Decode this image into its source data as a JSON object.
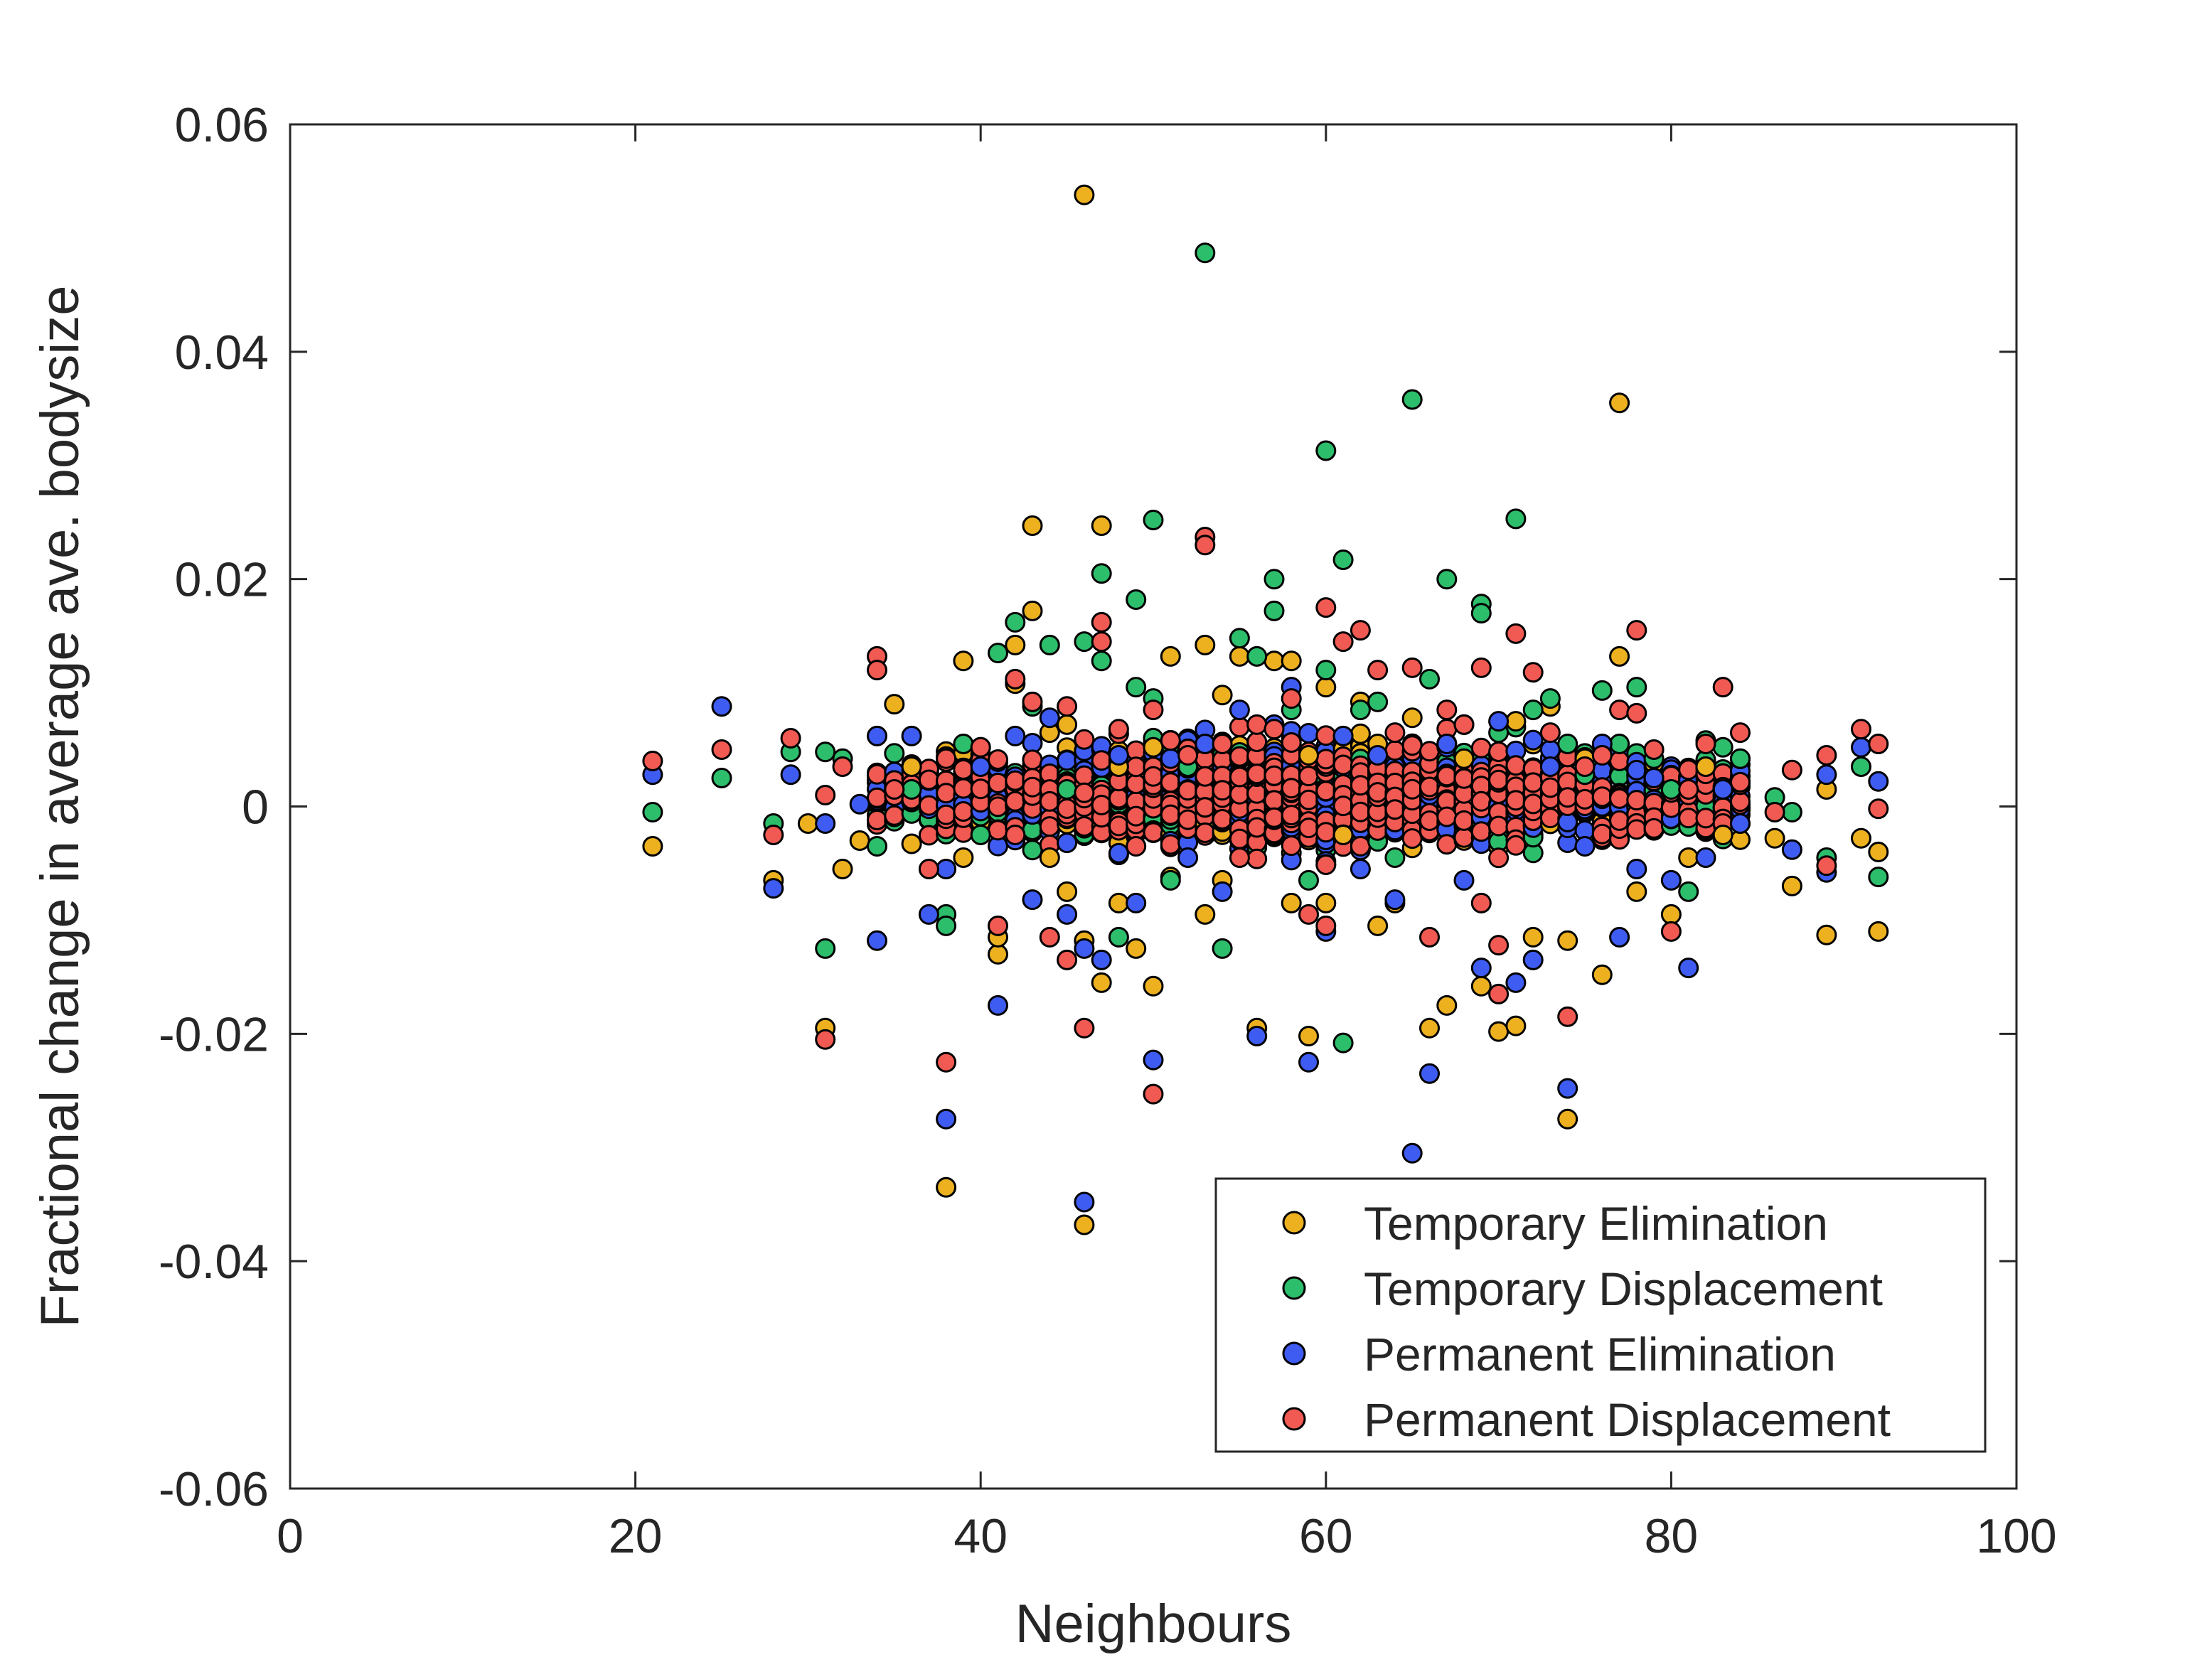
{
  "chart_data": {
    "type": "scatter",
    "title": "",
    "xlabel": "Neighbours",
    "ylabel": "Fractional change in average ave. bodysize",
    "xlim": [
      0,
      100
    ],
    "ylim": [
      -0.06,
      0.06
    ],
    "x_ticks": [
      0,
      20,
      40,
      60,
      80,
      100
    ],
    "x_tick_labels": [
      "0",
      "20",
      "40",
      "60",
      "80",
      "100"
    ],
    "y_ticks": [
      -0.06,
      -0.04,
      -0.02,
      0,
      0.02,
      0.04,
      0.06
    ],
    "y_tick_labels": [
      "-0.06",
      "-0.04",
      "-0.02",
      "0",
      "0.02",
      "0.04",
      "0.06"
    ],
    "grid": false,
    "legend_position": "bottom-right",
    "series": [
      {
        "name": "Temporary Elimination",
        "color": "#EDB120",
        "points": [
          [
            21,
            -0.0035
          ],
          [
            28,
            -0.0065
          ],
          [
            30,
            -0.0015
          ],
          [
            31,
            -0.0195
          ],
          [
            32,
            -0.0055
          ],
          [
            33,
            -0.003
          ],
          [
            35,
            0.009
          ],
          [
            36,
            0.0035
          ],
          [
            38,
            -0.0335
          ],
          [
            39,
            0.0128
          ],
          [
            39,
            -0.0045
          ],
          [
            40,
            0.0052
          ],
          [
            41,
            -0.013
          ],
          [
            41,
            -0.0115
          ],
          [
            42,
            0.0108
          ],
          [
            42,
            0.0142
          ],
          [
            43,
            0.0247
          ],
          [
            43,
            0.0172
          ],
          [
            44,
            0.0065
          ],
          [
            44,
            -0.0045
          ],
          [
            45,
            0.0072
          ],
          [
            45,
            -0.0075
          ],
          [
            46,
            0.0538
          ],
          [
            46,
            -0.0368
          ],
          [
            46,
            -0.0118
          ],
          [
            47,
            0.0247
          ],
          [
            47,
            -0.0155
          ],
          [
            48,
            0.0035
          ],
          [
            48,
            -0.0085
          ],
          [
            49,
            -0.0125
          ],
          [
            50,
            0.0052
          ],
          [
            50,
            -0.0158
          ],
          [
            51,
            0.0132
          ],
          [
            51,
            -0.0062
          ],
          [
            52,
            0.0035
          ],
          [
            53,
            0.0142
          ],
          [
            53,
            -0.0095
          ],
          [
            54,
            0.0098
          ],
          [
            54,
            -0.0065
          ],
          [
            55,
            0.0132
          ],
          [
            56,
            -0.0195
          ],
          [
            57,
            0.0128
          ],
          [
            58,
            0.0128
          ],
          [
            58,
            -0.0085
          ],
          [
            59,
            -0.0202
          ],
          [
            59,
            0.0045
          ],
          [
            60,
            0.0105
          ],
          [
            60,
            -0.0085
          ],
          [
            61,
            -0.0025
          ],
          [
            62,
            0.0092
          ],
          [
            63,
            0.0055
          ],
          [
            63,
            -0.0105
          ],
          [
            64,
            -0.0085
          ],
          [
            65,
            0.0078
          ],
          [
            66,
            -0.0195
          ],
          [
            67,
            -0.0175
          ],
          [
            68,
            0.0042
          ],
          [
            69,
            -0.0158
          ],
          [
            70,
            -0.0198
          ],
          [
            71,
            -0.0193
          ],
          [
            71,
            0.0075
          ],
          [
            72,
            -0.0115
          ],
          [
            73,
            0.0088
          ],
          [
            74,
            -0.0275
          ],
          [
            74,
            -0.0118
          ],
          [
            75,
            0.0042
          ],
          [
            76,
            -0.0148
          ],
          [
            77,
            0.0355
          ],
          [
            77,
            0.0132
          ],
          [
            78,
            -0.0075
          ],
          [
            79,
            0.0038
          ],
          [
            80,
            -0.0095
          ],
          [
            81,
            -0.0045
          ],
          [
            82,
            0.0035
          ],
          [
            83,
            -0.0025
          ],
          [
            84,
            -0.0015
          ],
          [
            86,
            -0.0028
          ],
          [
            87,
            -0.007
          ],
          [
            89,
            -0.0113
          ],
          [
            89,
            0.0015
          ],
          [
            91,
            -0.0028
          ],
          [
            92,
            -0.011
          ],
          [
            92,
            -0.004
          ]
        ]
      },
      {
        "name": "Temporary Displacement",
        "color": "#2DBE6C",
        "points": [
          [
            21,
            -0.0005
          ],
          [
            25,
            0.0025
          ],
          [
            28,
            -0.0015
          ],
          [
            29,
            0.0048
          ],
          [
            31,
            -0.0125
          ],
          [
            31,
            0.0048
          ],
          [
            32,
            0.0042
          ],
          [
            34,
            -0.0035
          ],
          [
            36,
            0.0015
          ],
          [
            38,
            -0.0095
          ],
          [
            38,
            -0.0105
          ],
          [
            39,
            0.0055
          ],
          [
            40,
            -0.0025
          ],
          [
            41,
            0.0135
          ],
          [
            42,
            0.0162
          ],
          [
            43,
            0.0088
          ],
          [
            44,
            0.0142
          ],
          [
            45,
            0.0015
          ],
          [
            46,
            0.0145
          ],
          [
            47,
            0.0205
          ],
          [
            47,
            0.0128
          ],
          [
            48,
            -0.0115
          ],
          [
            49,
            0.0182
          ],
          [
            49,
            0.0105
          ],
          [
            50,
            0.0252
          ],
          [
            50,
            0.0095
          ],
          [
            51,
            -0.0065
          ],
          [
            52,
            0.0035
          ],
          [
            53,
            0.0487
          ],
          [
            54,
            -0.0125
          ],
          [
            55,
            0.0148
          ],
          [
            56,
            0.0132
          ],
          [
            57,
            0.02
          ],
          [
            57,
            0.0172
          ],
          [
            58,
            0.0085
          ],
          [
            59,
            -0.0065
          ],
          [
            60,
            0.0313
          ],
          [
            60,
            0.012
          ],
          [
            61,
            0.0217
          ],
          [
            61,
            -0.0208
          ],
          [
            62,
            0.0085
          ],
          [
            63,
            0.0092
          ],
          [
            64,
            -0.0045
          ],
          [
            65,
            0.0358
          ],
          [
            66,
            0.0112
          ],
          [
            67,
            0.02
          ],
          [
            68,
            0.0072
          ],
          [
            69,
            0.0178
          ],
          [
            69,
            0.017
          ],
          [
            70,
            0.0065
          ],
          [
            71,
            0.0253
          ],
          [
            72,
            0.0085
          ],
          [
            73,
            0.0095
          ],
          [
            74,
            0.0055
          ],
          [
            75,
            0.0028
          ],
          [
            76,
            0.0102
          ],
          [
            77,
            0.0055
          ],
          [
            78,
            0.0105
          ],
          [
            79,
            0.0042
          ],
          [
            80,
            0.0015
          ],
          [
            81,
            -0.0075
          ],
          [
            82,
            0.0058
          ],
          [
            83,
            0.0052
          ],
          [
            84,
            0.0042
          ],
          [
            86,
            0.0008
          ],
          [
            87,
            -0.0005
          ],
          [
            89,
            -0.0045
          ],
          [
            91,
            0.0035
          ],
          [
            92,
            -0.0062
          ]
        ]
      },
      {
        "name": "Permanent Elimination",
        "color": "#3F5CF2",
        "points": [
          [
            21,
            0.0028
          ],
          [
            25,
            0.0088
          ],
          [
            28,
            -0.0072
          ],
          [
            29,
            0.0028
          ],
          [
            31,
            -0.0015
          ],
          [
            33,
            0.0002
          ],
          [
            34,
            -0.0118
          ],
          [
            34,
            0.0062
          ],
          [
            36,
            0.0062
          ],
          [
            37,
            -0.0095
          ],
          [
            38,
            -0.0275
          ],
          [
            38,
            -0.0055
          ],
          [
            40,
            0.0035
          ],
          [
            41,
            -0.0175
          ],
          [
            42,
            0.0062
          ],
          [
            43,
            -0.0082
          ],
          [
            44,
            0.0078
          ],
          [
            45,
            -0.0095
          ],
          [
            46,
            -0.0348
          ],
          [
            46,
            -0.0125
          ],
          [
            47,
            -0.0135
          ],
          [
            48,
            0.0045
          ],
          [
            49,
            -0.0085
          ],
          [
            50,
            -0.0223
          ],
          [
            51,
            0.0042
          ],
          [
            52,
            -0.0045
          ],
          [
            53,
            0.0055
          ],
          [
            54,
            -0.0075
          ],
          [
            55,
            0.0085
          ],
          [
            56,
            -0.0202
          ],
          [
            57,
            0.0072
          ],
          [
            58,
            0.0105
          ],
          [
            59,
            -0.0225
          ],
          [
            60,
            -0.011
          ],
          [
            61,
            0.0062
          ],
          [
            62,
            -0.0055
          ],
          [
            63,
            0.0045
          ],
          [
            64,
            -0.0082
          ],
          [
            65,
            -0.0305
          ],
          [
            66,
            -0.0235
          ],
          [
            67,
            0.0055
          ],
          [
            68,
            -0.0065
          ],
          [
            69,
            -0.0142
          ],
          [
            70,
            0.0075
          ],
          [
            71,
            -0.0155
          ],
          [
            72,
            -0.0135
          ],
          [
            73,
            0.0035
          ],
          [
            74,
            -0.0248
          ],
          [
            75,
            -0.0035
          ],
          [
            76,
            0.0055
          ],
          [
            77,
            -0.0115
          ],
          [
            78,
            -0.0055
          ],
          [
            79,
            0.0025
          ],
          [
            80,
            -0.0065
          ],
          [
            81,
            -0.0142
          ],
          [
            82,
            -0.0045
          ],
          [
            83,
            0.0015
          ],
          [
            84,
            -0.0015
          ],
          [
            87,
            -0.0038
          ],
          [
            89,
            -0.0058
          ],
          [
            89,
            0.0028
          ],
          [
            91,
            0.0052
          ],
          [
            92,
            0.0022
          ]
        ]
      },
      {
        "name": "Permanent Displacement",
        "color": "#F05A52",
        "points": [
          [
            21,
            0.004
          ],
          [
            25,
            0.005
          ],
          [
            28,
            -0.0025
          ],
          [
            29,
            0.006
          ],
          [
            31,
            -0.0205
          ],
          [
            31,
            0.001
          ],
          [
            32,
            0.0035
          ],
          [
            34,
            0.0132
          ],
          [
            34,
            0.012
          ],
          [
            35,
            0.0015
          ],
          [
            37,
            -0.0055
          ],
          [
            38,
            -0.0225
          ],
          [
            38,
            0.0042
          ],
          [
            40,
            0.0052
          ],
          [
            41,
            -0.0105
          ],
          [
            42,
            0.0112
          ],
          [
            42,
            -0.0025
          ],
          [
            43,
            0.0092
          ],
          [
            44,
            -0.0115
          ],
          [
            45,
            0.0088
          ],
          [
            45,
            -0.0135
          ],
          [
            46,
            -0.0195
          ],
          [
            46,
            0.0012
          ],
          [
            47,
            0.0162
          ],
          [
            47,
            0.0145
          ],
          [
            48,
            0.0068
          ],
          [
            49,
            -0.0035
          ],
          [
            50,
            -0.0253
          ],
          [
            50,
            0.0085
          ],
          [
            51,
            0.0058
          ],
          [
            52,
            0.0045
          ],
          [
            53,
            0.0237
          ],
          [
            53,
            0.023
          ],
          [
            54,
            0.0055
          ],
          [
            55,
            -0.0045
          ],
          [
            56,
            0.0072
          ],
          [
            57,
            0.0068
          ],
          [
            58,
            0.0095
          ],
          [
            59,
            -0.0095
          ],
          [
            60,
            0.0175
          ],
          [
            60,
            -0.0105
          ],
          [
            61,
            0.0145
          ],
          [
            62,
            0.0155
          ],
          [
            63,
            0.012
          ],
          [
            64,
            0.0065
          ],
          [
            65,
            0.0122
          ],
          [
            66,
            -0.0115
          ],
          [
            67,
            0.0085
          ],
          [
            68,
            0.0072
          ],
          [
            69,
            0.0122
          ],
          [
            69,
            -0.0085
          ],
          [
            70,
            -0.0165
          ],
          [
            70,
            -0.0122
          ],
          [
            71,
            0.0152
          ],
          [
            72,
            0.0118
          ],
          [
            73,
            0.0065
          ],
          [
            74,
            -0.0185
          ],
          [
            75,
            0.0035
          ],
          [
            76,
            0.0045
          ],
          [
            77,
            0.0085
          ],
          [
            78,
            0.0155
          ],
          [
            78,
            0.0082
          ],
          [
            79,
            0.005
          ],
          [
            80,
            -0.011
          ],
          [
            81,
            0.0015
          ],
          [
            82,
            0.0055
          ],
          [
            83,
            0.0105
          ],
          [
            84,
            0.0065
          ],
          [
            86,
            -0.0005
          ],
          [
            87,
            0.0032
          ],
          [
            89,
            0.0045
          ],
          [
            89,
            -0.0052
          ],
          [
            91,
            0.0068
          ],
          [
            92,
            0.0055
          ],
          [
            92,
            -0.0002
          ]
        ]
      }
    ],
    "dense_band": {
      "note_series_order": [
        "Temporary Elimination",
        "Temporary Displacement",
        "Permanent Elimination",
        "Permanent Displacement"
      ],
      "x_range": [
        34,
        84
      ],
      "y_spread": 0.0065
    }
  }
}
